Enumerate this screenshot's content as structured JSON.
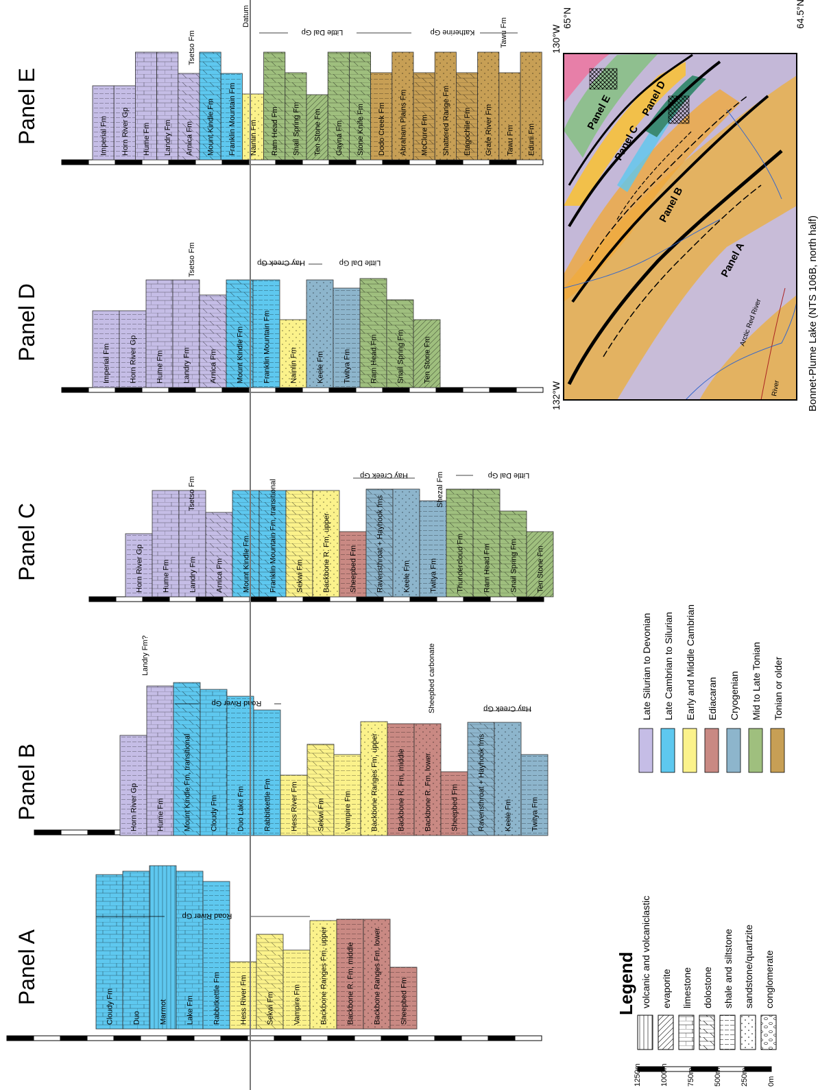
{
  "datum_label": "Datum",
  "colors": {
    "late_silurian_devonian": "#c5bde6",
    "late_cambrian_silurian": "#5ec8ef",
    "early_middle_cambrian": "#fbf28b",
    "ediacaran": "#c98983",
    "cryogenian": "#8db5cc",
    "mid_late_tonian": "#9fbf7e",
    "tonian_older": "#c79f55"
  },
  "panels": [
    {
      "title": "Panel A",
      "groups": [
        "Road River Gp"
      ],
      "units": [
        {
          "name": "Cloudy Fm",
          "color": "late_cambrian_silurian",
          "lith": "limestone",
          "top": 1275,
          "bottom": 1500
        },
        {
          "name": "Duo",
          "color": "late_cambrian_silurian",
          "lith": "limestone",
          "top": 1270,
          "bottom": 1500
        },
        {
          "name": "Marmot",
          "color": "late_cambrian_silurian",
          "lith": "volcanic",
          "top": 1262,
          "bottom": 1500
        },
        {
          "name": "Lake Fm",
          "color": "late_cambrian_silurian",
          "lith": "limestone",
          "top": 1270,
          "bottom": 1500
        },
        {
          "name": "Rabbitkettle Fm",
          "color": "late_cambrian_silurian",
          "lith": "shale",
          "top": 1285,
          "bottom": 1500
        },
        {
          "name": "Hess River Fm",
          "color": "early_middle_cambrian",
          "lith": "shale",
          "top": 1402,
          "bottom": 1500
        },
        {
          "name": "Sekwi Fm",
          "color": "early_middle_cambrian",
          "lith": "dolostone",
          "top": 1362,
          "bottom": 1500
        },
        {
          "name": "Vampire Fm",
          "color": "early_middle_cambrian",
          "lith": "shale",
          "top": 1385,
          "bottom": 1500
        },
        {
          "name": "Backbone Ranges Fm, upper",
          "color": "early_middle_cambrian",
          "lith": "sandstone",
          "top": 1342,
          "bottom": 1500
        },
        {
          "name": "Backbone R. Fm, middle",
          "color": "ediacaran",
          "lith": "shale",
          "top": 1340,
          "bottom": 1500
        },
        {
          "name": "Backbone Ranges Fm, lower",
          "color": "ediacaran",
          "lith": "sandstone",
          "top": 1340,
          "bottom": 1500
        },
        {
          "name": "Sheepbed Fm",
          "color": "ediacaran",
          "lith": "shale",
          "top": 1410,
          "bottom": 1500
        }
      ]
    },
    {
      "title": "Panel B",
      "groups": [
        "Landry Fm?",
        "Road River Gp",
        "Sheepbed carbonate",
        "Hay Creek Gp"
      ],
      "units": [
        {
          "name": "Horn River Gp",
          "color": "late_silurian_devonian",
          "lith": "shale",
          "top": 1072
        },
        {
          "name": "Hume Fm",
          "color": "late_silurian_devonian",
          "lith": "limestone",
          "top": 1000
        },
        {
          "name": "Mount Kindle Fm, transitional",
          "color": "late_cambrian_silurian",
          "lith": "dolostone",
          "top": 995
        },
        {
          "name": "Cloudy Fm",
          "color": "late_cambrian_silurian",
          "lith": "limestone",
          "top": 1005
        },
        {
          "name": "Duo Lake Fm",
          "color": "late_cambrian_silurian",
          "lith": "shale",
          "top": 1015
        },
        {
          "name": "Rabbitkettle Fm",
          "color": "late_cambrian_silurian",
          "lith": "shale",
          "top": 1035
        },
        {
          "name": "Hess River Fm",
          "color": "early_middle_cambrian",
          "lith": "shale",
          "top": 1130
        },
        {
          "name": "Sekwi Fm",
          "color": "early_middle_cambrian",
          "lith": "dolostone",
          "top": 1085
        },
        {
          "name": "Vampire Fm",
          "color": "early_middle_cambrian",
          "lith": "shale",
          "top": 1100
        },
        {
          "name": "Backbone Ranges Fm, upper",
          "color": "early_middle_cambrian",
          "lith": "sandstone",
          "top": 1052
        },
        {
          "name": "Backbone R. Fm, middle",
          "color": "ediacaran",
          "lith": "shale",
          "top": 1055
        },
        {
          "name": "Backbone R. Fm, lower",
          "color": "ediacaran",
          "lith": "sandstone",
          "top": 1055
        },
        {
          "name": "Sheepbed Fm",
          "color": "ediacaran",
          "lith": "shale",
          "top": 1125
        },
        {
          "name": "Ravensthroat + Hayhook fms",
          "color": "cryogenian",
          "lith": "dolostone",
          "top": 1053
        },
        {
          "name": "Keele Fm",
          "color": "cryogenian",
          "lith": "sandstone",
          "top": 1053
        },
        {
          "name": "Twitya Fm",
          "color": "cryogenian",
          "lith": "shale",
          "top": 1100
        }
      ]
    },
    {
      "title": "Panel C",
      "groups": [
        "Tsetso Fm",
        "Hay Creek Gp",
        "Shezal Fm",
        "Little Dal Gp"
      ],
      "units": [
        {
          "name": "Horn River Gp",
          "color": "late_silurian_devonian",
          "lith": "shale",
          "top": 778
        },
        {
          "name": "Hume Fm",
          "color": "late_silurian_devonian",
          "lith": "limestone",
          "top": 715
        },
        {
          "name": "Landry Fm",
          "color": "late_silurian_devonian",
          "lith": "limestone",
          "top": 715
        },
        {
          "name": "Arnica Fm",
          "color": "late_silurian_devonian",
          "lith": "dolostone",
          "top": 747
        },
        {
          "name": "Mount Kindle Fm",
          "color": "late_cambrian_silurian",
          "lith": "dolostone",
          "top": 715
        },
        {
          "name": "Franklin Mountain Fm, transitional",
          "color": "late_cambrian_silurian",
          "lith": "dolostone",
          "top": 715
        },
        {
          "name": "Sekwi Fm",
          "color": "early_middle_cambrian",
          "lith": "dolostone",
          "top": 715
        },
        {
          "name": "Backbone R. Fm, upper",
          "color": "early_middle_cambrian",
          "lith": "sandstone",
          "top": 715
        },
        {
          "name": "Sheepbed Fm",
          "color": "ediacaran",
          "lith": "shale",
          "top": 775
        },
        {
          "name": "Ravensthroat + Hayhook fms",
          "color": "cryogenian",
          "lith": "dolostone",
          "top": 713
        },
        {
          "name": "Keele Fm",
          "color": "cryogenian",
          "lith": "sandstone",
          "top": 713
        },
        {
          "name": "Twitya Fm",
          "color": "cryogenian",
          "lith": "shale",
          "top": 730
        },
        {
          "name": "Thundercloud Fm",
          "color": "mid_late_tonian",
          "lith": "dolostone",
          "top": 713
        },
        {
          "name": "Ram Head Fm",
          "color": "mid_late_tonian",
          "lith": "dolostone",
          "top": 713
        },
        {
          "name": "Snail Spring Fm",
          "color": "mid_late_tonian",
          "lith": "dolostone",
          "top": 745
        },
        {
          "name": "Ten Stone Fm",
          "color": "mid_late_tonian",
          "lith": "evaporite",
          "top": 775
        }
      ]
    },
    {
      "title": "Panel D",
      "groups": [
        "Tsetso Fm",
        "Hay Creek Gp",
        "Little Dal Gp"
      ],
      "units": [
        {
          "name": "Imperial Fm",
          "color": "late_silurian_devonian",
          "lith": "shale",
          "top": 453
        },
        {
          "name": "Horn River Gp",
          "color": "late_silurian_devonian",
          "lith": "shale",
          "top": 453
        },
        {
          "name": "Hume Fm",
          "color": "late_silurian_devonian",
          "lith": "limestone",
          "top": 408
        },
        {
          "name": "Landry Fm",
          "color": "late_silurian_devonian",
          "lith": "limestone",
          "top": 408
        },
        {
          "name": "Arnica Fm",
          "color": "late_silurian_devonian",
          "lith": "dolostone",
          "top": 430
        },
        {
          "name": "Mount Kindle Fm",
          "color": "late_cambrian_silurian",
          "lith": "dolostone",
          "top": 408
        },
        {
          "name": "Franklin Mountain Fm",
          "color": "late_cambrian_silurian",
          "lith": "shale",
          "top": 408
        },
        {
          "name": "Nainlin Fm",
          "color": "early_middle_cambrian",
          "lith": "sandstone",
          "top": 466
        },
        {
          "name": "Keele Fm",
          "color": "cryogenian",
          "lith": "sandstone",
          "top": 408
        },
        {
          "name": "Twitya Fm",
          "color": "cryogenian",
          "lith": "shale",
          "top": 420
        },
        {
          "name": "Ram Head Fm",
          "color": "mid_late_tonian",
          "lith": "dolostone",
          "top": 406
        },
        {
          "name": "Snail Spring Fm",
          "color": "mid_late_tonian",
          "lith": "dolostone",
          "top": 437
        },
        {
          "name": "Ten Stone Fm",
          "color": "mid_late_tonian",
          "lith": "evaporite",
          "top": 466
        }
      ]
    },
    {
      "title": "Panel E",
      "groups": [
        "Tsetso Fm",
        "Little Dal Gp",
        "Katherine Gp",
        "Tawu Fm"
      ],
      "units": [
        {
          "name": "Imperial Fm",
          "color": "late_silurian_devonian",
          "lith": "shale",
          "top": 125
        },
        {
          "name": "Horn River Gp",
          "color": "late_silurian_devonian",
          "lith": "shale",
          "top": 125
        },
        {
          "name": "Hume Fm",
          "color": "late_silurian_devonian",
          "lith": "limestone",
          "top": 76
        },
        {
          "name": "Landry Fm",
          "color": "late_silurian_devonian",
          "lith": "limestone",
          "top": 76
        },
        {
          "name": "Arnica Fm",
          "color": "late_silurian_devonian",
          "lith": "dolostone",
          "top": 107
        },
        {
          "name": "Mount Kindle Fm",
          "color": "late_cambrian_silurian",
          "lith": "dolostone",
          "top": 76
        },
        {
          "name": "Franklin Mountain Fm",
          "color": "late_cambrian_silurian",
          "lith": "shale",
          "top": 107
        },
        {
          "name": "Nainlin Fm",
          "color": "early_middle_cambrian",
          "lith": "sandstone",
          "top": 137
        },
        {
          "name": "Ram Head Fm",
          "color": "mid_late_tonian",
          "lith": "dolostone",
          "top": 76
        },
        {
          "name": "Snail Spring Fm",
          "color": "mid_late_tonian",
          "lith": "dolostone",
          "top": 106
        },
        {
          "name": "Ten Stone Fm",
          "color": "mid_late_tonian",
          "lith": "evaporite",
          "top": 138
        },
        {
          "name": "Gayna Fm",
          "color": "mid_late_tonian",
          "lith": "dolostone",
          "top": 76
        },
        {
          "name": "Stone Knife Fm",
          "color": "mid_late_tonian",
          "lith": "dolostone",
          "top": 76
        },
        {
          "name": "Dodo Creek Fm",
          "color": "tonian_older",
          "lith": "shale",
          "top": 106
        },
        {
          "name": "Abraham Plains Fm",
          "color": "tonian_older",
          "lith": "sandstone",
          "top": 76
        },
        {
          "name": "McClure Fm",
          "color": "tonian_older",
          "lith": "dolostone",
          "top": 106
        },
        {
          "name": "Shattered Range Fm",
          "color": "tonian_older",
          "lith": "sandstone",
          "top": 76
        },
        {
          "name": "Etagochile Fm",
          "color": "tonian_older",
          "lith": "dolostone",
          "top": 106
        },
        {
          "name": "Grafe River Fm",
          "color": "tonian_older",
          "lith": "sandstone",
          "top": 76
        },
        {
          "name": "Tawu Fm",
          "color": "tonian_older",
          "lith": "sandstone",
          "top": 106
        },
        {
          "name": "Eduni Fm",
          "color": "tonian_older",
          "lith": "sandstone",
          "top": 76
        }
      ]
    }
  ],
  "legend": {
    "title": "Legend",
    "lithologies": [
      {
        "key": "volcanic",
        "label": "volcanic and volcaniclastic"
      },
      {
        "key": "evaporite",
        "label": "evaporite"
      },
      {
        "key": "limestone",
        "label": "limestone"
      },
      {
        "key": "dolostone",
        "label": "dolostone"
      },
      {
        "key": "shale",
        "label": "shale and siltstone"
      },
      {
        "key": "sandstone",
        "label": "sandstone/quartzite"
      },
      {
        "key": "conglomerate",
        "label": "conglomerate"
      }
    ],
    "ages": [
      {
        "key": "late_silurian_devonian",
        "label": "Late Silurian to Devonian"
      },
      {
        "key": "late_cambrian_silurian",
        "label": "Late Cambrian to Silurian"
      },
      {
        "key": "early_middle_cambrian",
        "label": "Early and Middle Cambrian"
      },
      {
        "key": "ediacaran",
        "label": "Ediacaran"
      },
      {
        "key": "cryogenian",
        "label": "Cryogenian"
      },
      {
        "key": "mid_late_tonian",
        "label": "Mid to Late Tonian"
      },
      {
        "key": "tonian_older",
        "label": "Tonian or older"
      }
    ],
    "scale": [
      "1250m",
      "1000m",
      "750m",
      "500m",
      "250m",
      "0m"
    ]
  },
  "map": {
    "caption": "Bonnet-Plume Lake  (NTS 106B, north half)",
    "lon_left": "132°W",
    "lon_right": "130°W",
    "lat_top": "65°N",
    "lat_bottom": "64.5°N",
    "panels": [
      "Panel A",
      "Panel B",
      "Panel C",
      "Panel D",
      "Panel E"
    ],
    "rivers": [
      "Arctic Red River",
      "River"
    ]
  }
}
